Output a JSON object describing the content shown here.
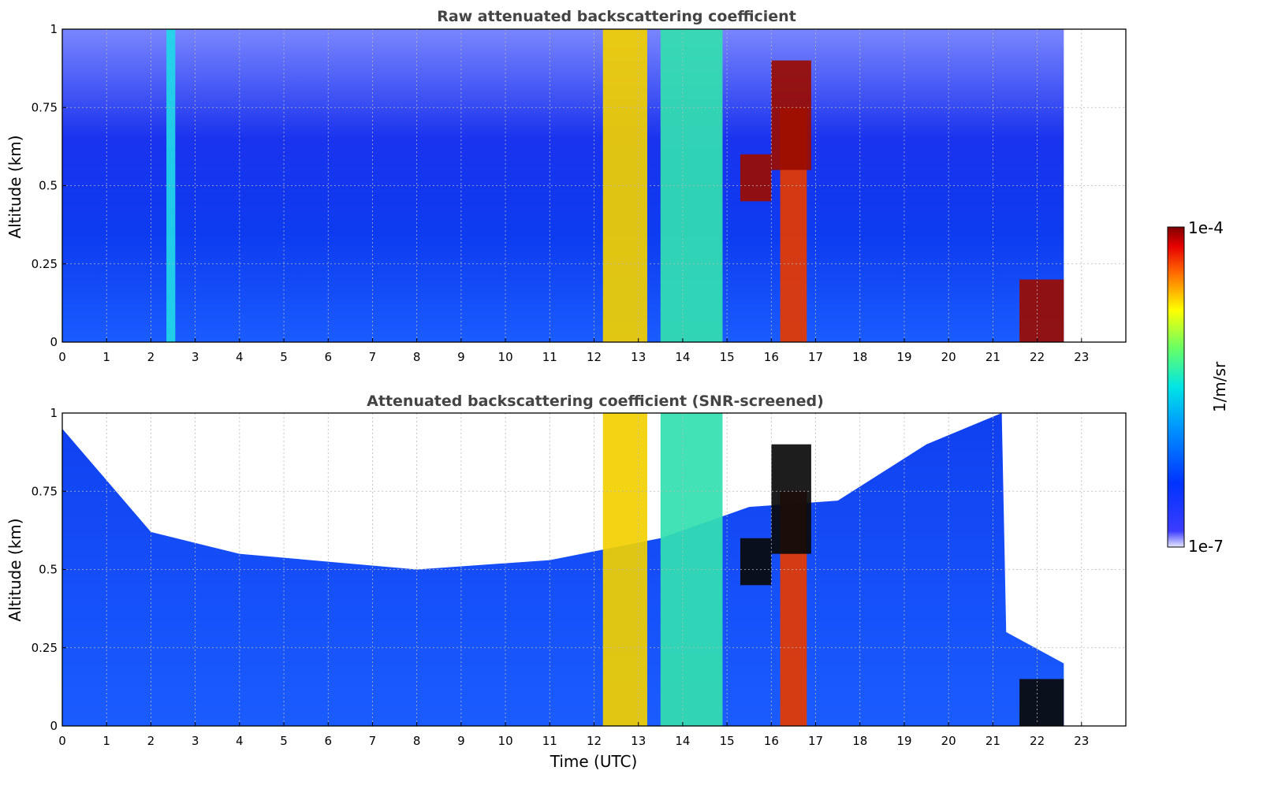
{
  "chart_data": [
    {
      "type": "heatmap",
      "title": "Raw attenuated backscattering coefficient",
      "xlabel": "",
      "ylabel": "Altitude (km)",
      "xlim": [
        0,
        24
      ],
      "ylim": [
        0,
        1
      ],
      "xticks": [
        "0",
        "1",
        "2",
        "3",
        "4",
        "5",
        "6",
        "7",
        "8",
        "9",
        "10",
        "11",
        "12",
        "13",
        "14",
        "15",
        "16",
        "17",
        "18",
        "19",
        "20",
        "21",
        "22",
        "23"
      ],
      "yticks": [
        "0",
        "0.25",
        "0.5",
        "0.75",
        "1"
      ],
      "grid": true,
      "data_end_time": 22.6,
      "features": [
        {
          "x": [
            12.2,
            13.2
          ],
          "y": [
            0,
            1
          ],
          "level": "yellow-orange"
        },
        {
          "x": [
            13.5,
            14.9
          ],
          "y": [
            0,
            1
          ],
          "level": "cyan-green"
        },
        {
          "x": [
            16.2,
            16.8
          ],
          "y": [
            0,
            0.75
          ],
          "level": "red"
        },
        {
          "x": [
            15.3,
            16.0
          ],
          "y": [
            0.45,
            0.6
          ],
          "level": "dark-red"
        },
        {
          "x": [
            16.0,
            16.9
          ],
          "y": [
            0.55,
            0.9
          ],
          "level": "dark-red"
        },
        {
          "x": [
            21.6,
            22.6
          ],
          "y": [
            0,
            0.2
          ],
          "level": "dark-red"
        },
        {
          "x": [
            2.35,
            2.55
          ],
          "y": [
            0,
            1
          ],
          "level": "cyan"
        }
      ]
    },
    {
      "type": "heatmap",
      "title": "Attenuated backscattering coefficient (SNR-screened)",
      "xlabel": "Time (UTC)",
      "ylabel": "Altitude (km)",
      "xlim": [
        0,
        24
      ],
      "ylim": [
        0,
        1
      ],
      "xticks": [
        "0",
        "1",
        "2",
        "3",
        "4",
        "5",
        "6",
        "7",
        "8",
        "9",
        "10",
        "11",
        "12",
        "13",
        "14",
        "15",
        "16",
        "17",
        "18",
        "19",
        "20",
        "21",
        "22",
        "23"
      ],
      "yticks": [
        "0",
        "0.25",
        "0.5",
        "0.75",
        "1"
      ],
      "grid": true,
      "data_end_time": 22.6,
      "features": [
        {
          "x": [
            12.2,
            13.2
          ],
          "y": [
            0,
            1
          ],
          "level": "yellow-orange"
        },
        {
          "x": [
            13.5,
            14.9
          ],
          "y": [
            0,
            1
          ],
          "level": "cyan-green"
        },
        {
          "x": [
            16.2,
            16.8
          ],
          "y": [
            0,
            0.75
          ],
          "level": "red"
        },
        {
          "x": [
            15.3,
            16.0
          ],
          "y": [
            0.45,
            0.6
          ],
          "level": "black"
        },
        {
          "x": [
            16.0,
            16.9
          ],
          "y": [
            0.55,
            0.9
          ],
          "level": "black"
        },
        {
          "x": [
            21.6,
            22.6
          ],
          "y": [
            0,
            0.15
          ],
          "level": "black"
        }
      ]
    }
  ],
  "colorbar": {
    "label": "1/m/sr",
    "max_label": "1e-4",
    "min_label": "1e-7",
    "colormap": "jet",
    "scale": "log"
  }
}
